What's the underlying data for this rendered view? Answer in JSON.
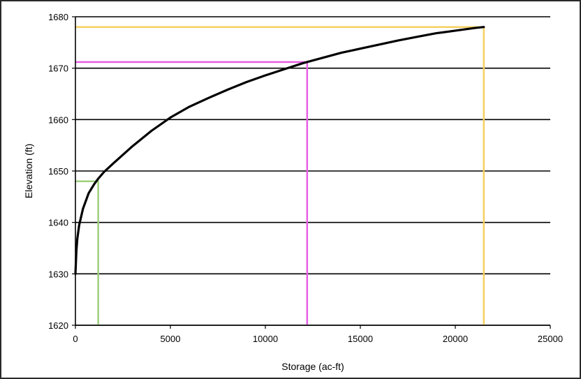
{
  "chart_data": {
    "type": "line",
    "xlabel": "Storage (ac-ft)",
    "ylabel": "Elevation (ft)",
    "xlim": [
      0,
      25000
    ],
    "ylim": [
      1620,
      1680
    ],
    "xticks": [
      0,
      5000,
      10000,
      15000,
      20000,
      25000
    ],
    "yticks": [
      1620,
      1630,
      1640,
      1650,
      1660,
      1670,
      1680
    ],
    "grid": "horizontal",
    "legend": "none",
    "series": [
      {
        "color": "#000000",
        "x": [
          0,
          50,
          100,
          200,
          400,
          700,
          1000,
          1200,
          1500,
          2000,
          3000,
          4000,
          5000,
          6000,
          7000,
          8000,
          9000,
          10000,
          11000,
          12000,
          13000,
          14000,
          15000,
          16000,
          17000,
          18000,
          19000,
          20000,
          21000,
          21500
        ],
        "y": [
          1630,
          1634.5,
          1636.8,
          1639.5,
          1642.7,
          1645.7,
          1647.5,
          1648.5,
          1649.8,
          1651.5,
          1654.8,
          1657.8,
          1660.4,
          1662.5,
          1664.2,
          1665.8,
          1667.3,
          1668.6,
          1669.8,
          1671,
          1672,
          1673,
          1673.8,
          1674.6,
          1675.4,
          1676.1,
          1676.8,
          1677.3,
          1677.8,
          1678
        ]
      }
    ],
    "reference_lines": [
      {
        "color": "#9fcf7f",
        "x": 1200,
        "y": 1648
      },
      {
        "color": "#e85ee8",
        "x": 12200,
        "y": 1671.2
      },
      {
        "color": "#f5d060",
        "x": 21500,
        "y": 1678
      }
    ]
  }
}
